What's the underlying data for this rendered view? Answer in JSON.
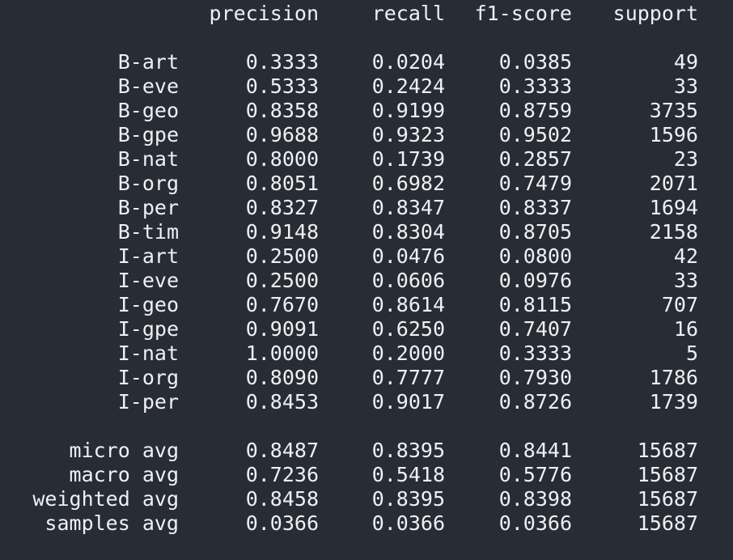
{
  "header": {
    "precision": "precision",
    "recall": "recall",
    "f1": "f1-score",
    "support": "support"
  },
  "rows": [
    {
      "label": "B-art",
      "precision": "0.3333",
      "recall": "0.0204",
      "f1": "0.0385",
      "support": "49"
    },
    {
      "label": "B-eve",
      "precision": "0.5333",
      "recall": "0.2424",
      "f1": "0.3333",
      "support": "33"
    },
    {
      "label": "B-geo",
      "precision": "0.8358",
      "recall": "0.9199",
      "f1": "0.8759",
      "support": "3735"
    },
    {
      "label": "B-gpe",
      "precision": "0.9688",
      "recall": "0.9323",
      "f1": "0.9502",
      "support": "1596"
    },
    {
      "label": "B-nat",
      "precision": "0.8000",
      "recall": "0.1739",
      "f1": "0.2857",
      "support": "23"
    },
    {
      "label": "B-org",
      "precision": "0.8051",
      "recall": "0.6982",
      "f1": "0.7479",
      "support": "2071"
    },
    {
      "label": "B-per",
      "precision": "0.8327",
      "recall": "0.8347",
      "f1": "0.8337",
      "support": "1694"
    },
    {
      "label": "B-tim",
      "precision": "0.9148",
      "recall": "0.8304",
      "f1": "0.8705",
      "support": "2158"
    },
    {
      "label": "I-art",
      "precision": "0.2500",
      "recall": "0.0476",
      "f1": "0.0800",
      "support": "42"
    },
    {
      "label": "I-eve",
      "precision": "0.2500",
      "recall": "0.0606",
      "f1": "0.0976",
      "support": "33"
    },
    {
      "label": "I-geo",
      "precision": "0.7670",
      "recall": "0.8614",
      "f1": "0.8115",
      "support": "707"
    },
    {
      "label": "I-gpe",
      "precision": "0.9091",
      "recall": "0.6250",
      "f1": "0.7407",
      "support": "16"
    },
    {
      "label": "I-nat",
      "precision": "1.0000",
      "recall": "0.2000",
      "f1": "0.3333",
      "support": "5"
    },
    {
      "label": "I-org",
      "precision": "0.8090",
      "recall": "0.7777",
      "f1": "0.7930",
      "support": "1786"
    },
    {
      "label": "I-per",
      "precision": "0.8453",
      "recall": "0.9017",
      "f1": "0.8726",
      "support": "1739"
    }
  ],
  "averages": [
    {
      "label": "micro avg",
      "precision": "0.8487",
      "recall": "0.8395",
      "f1": "0.8441",
      "support": "15687"
    },
    {
      "label": "macro avg",
      "precision": "0.7236",
      "recall": "0.5418",
      "f1": "0.5776",
      "support": "15687"
    },
    {
      "label": "weighted avg",
      "precision": "0.8458",
      "recall": "0.8395",
      "f1": "0.8398",
      "support": "15687"
    },
    {
      "label": "samples avg",
      "precision": "0.0366",
      "recall": "0.0366",
      "f1": "0.0366",
      "support": "15687"
    }
  ]
}
